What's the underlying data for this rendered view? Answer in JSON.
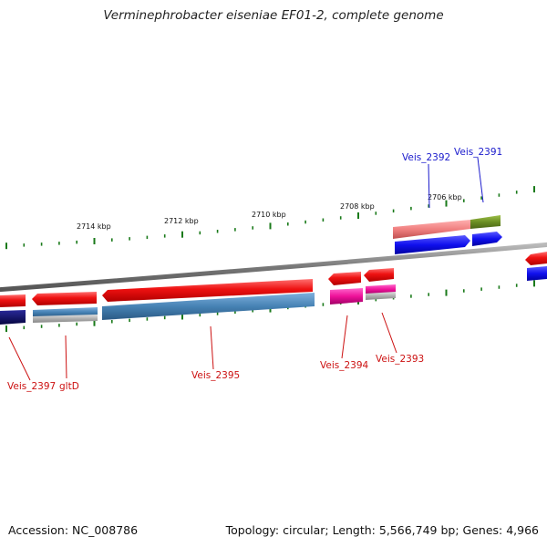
{
  "title": "Verminephrobacter eiseniae EF01-2, complete genome",
  "footer": {
    "accession": "Accession: NC_008786",
    "summary": "Topology: circular; Length: 5,566,749 bp; Genes: 4,966"
  },
  "colors": {
    "backbone": "#8a8a8a",
    "tick": "#1a7a1a",
    "label_forward": "#1a1acc",
    "label_reverse": "#cc1111",
    "cds_red": "#ee1111",
    "cds_blue": "#1010ee",
    "cds_navy": "#0a0a6e",
    "cds_steel": "#4682b4",
    "cds_magenta": "#ee1199",
    "cds_olive": "#6b8e23",
    "cds_pink": "#f08080",
    "cds_gray": "#b0b0b0"
  },
  "scale_labels": [
    "2714 kbp",
    "2712 kbp",
    "2710 kbp",
    "2708 kbp",
    "2706 kbp"
  ],
  "gene_labels": [
    {
      "text": "Veis_2392",
      "strand": "forward"
    },
    {
      "text": "Veis_2391",
      "strand": "forward"
    },
    {
      "text": "Veis_2397",
      "strand": "reverse"
    },
    {
      "text": "gltD",
      "strand": "reverse"
    },
    {
      "text": "Veis_2395",
      "strand": "reverse"
    },
    {
      "text": "Veis_2394",
      "strand": "reverse"
    },
    {
      "text": "Veis_2393",
      "strand": "reverse"
    }
  ]
}
